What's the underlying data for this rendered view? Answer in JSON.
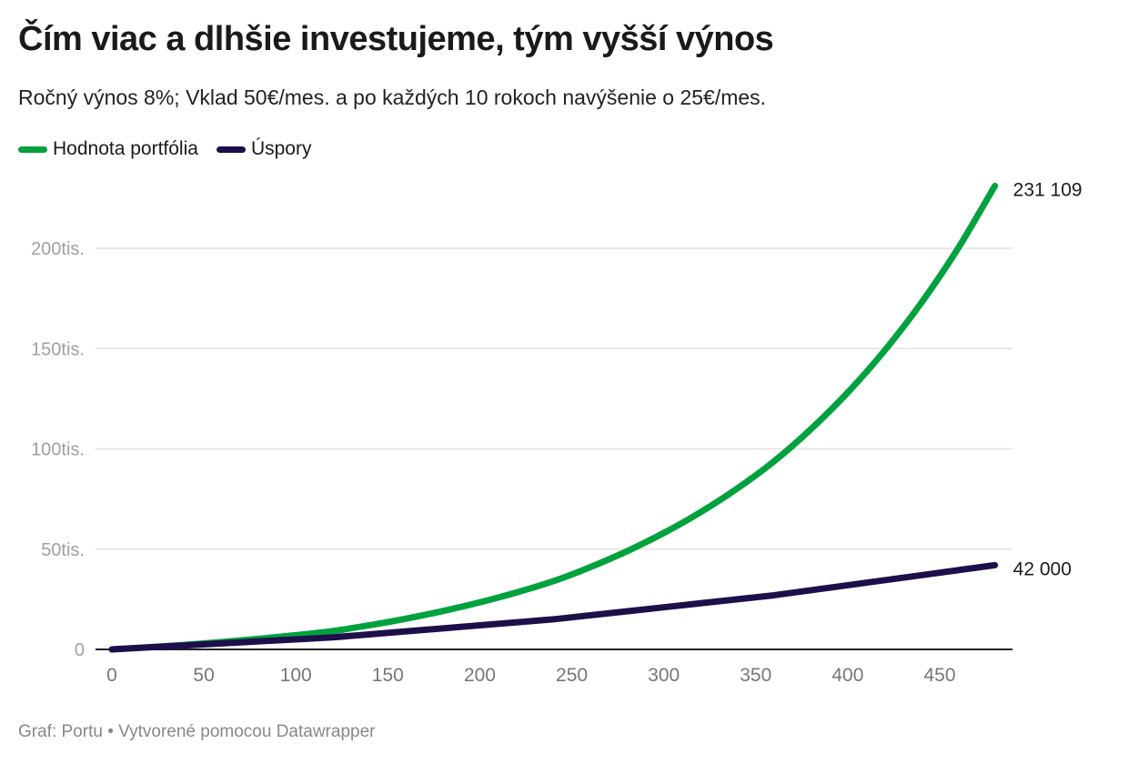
{
  "title": "Čím viac a dlhšie investujeme, tým vyšší výnos",
  "subtitle": "Ročný výnos 8%; Vklad 50€/mes. a po každých 10 rokoch navýšenie o 25€/mes.",
  "footer": "Graf: Portu • Vytvorené pomocou Datawrapper",
  "chart_data": {
    "type": "line",
    "title": "Čím viac a dlhšie investujeme, tým vyšší výnos",
    "xlabel": "",
    "ylabel": "",
    "xlim": [
      0,
      480
    ],
    "ylim": [
      0,
      231109
    ],
    "grid": "horizontal",
    "legend": "top-left",
    "x_ticks": [
      0,
      50,
      100,
      150,
      200,
      250,
      300,
      350,
      400,
      450
    ],
    "x_tick_labels": [
      "0",
      "50",
      "100",
      "150",
      "200",
      "250",
      "300",
      "350",
      "400",
      "450"
    ],
    "y_ticks": [
      0,
      50000,
      100000,
      150000,
      200000
    ],
    "y_tick_labels": [
      "0",
      "50tis.",
      "100tis.",
      "150tis.",
      "200tis."
    ],
    "x": [
      0,
      20,
      40,
      60,
      80,
      100,
      120,
      140,
      160,
      180,
      200,
      220,
      240,
      260,
      280,
      300,
      320,
      340,
      360,
      380,
      400,
      420,
      440,
      460,
      480
    ],
    "series": [
      {
        "name": "Hodnota portfólia",
        "color": "#00a23d",
        "end_label": "231 109",
        "values": [
          0,
          1066,
          2283,
          3673,
          5261,
          7075,
          9146,
          12045,
          15356,
          19137,
          23456,
          28389,
          34023,
          40990,
          48948,
          58037,
          68417,
          80273,
          93813,
          109811,
          128082,
          148950,
          172784,
          200005,
          231109
        ]
      },
      {
        "name": "Úspory",
        "color": "#1e0f4b",
        "end_label": "42 000",
        "values": [
          0,
          1000,
          2000,
          3000,
          4000,
          5000,
          6000,
          7500,
          9000,
          10500,
          12000,
          13500,
          15000,
          17000,
          19000,
          21000,
          23000,
          25000,
          27000,
          29500,
          32000,
          34500,
          37000,
          39500,
          42000
        ]
      }
    ]
  }
}
